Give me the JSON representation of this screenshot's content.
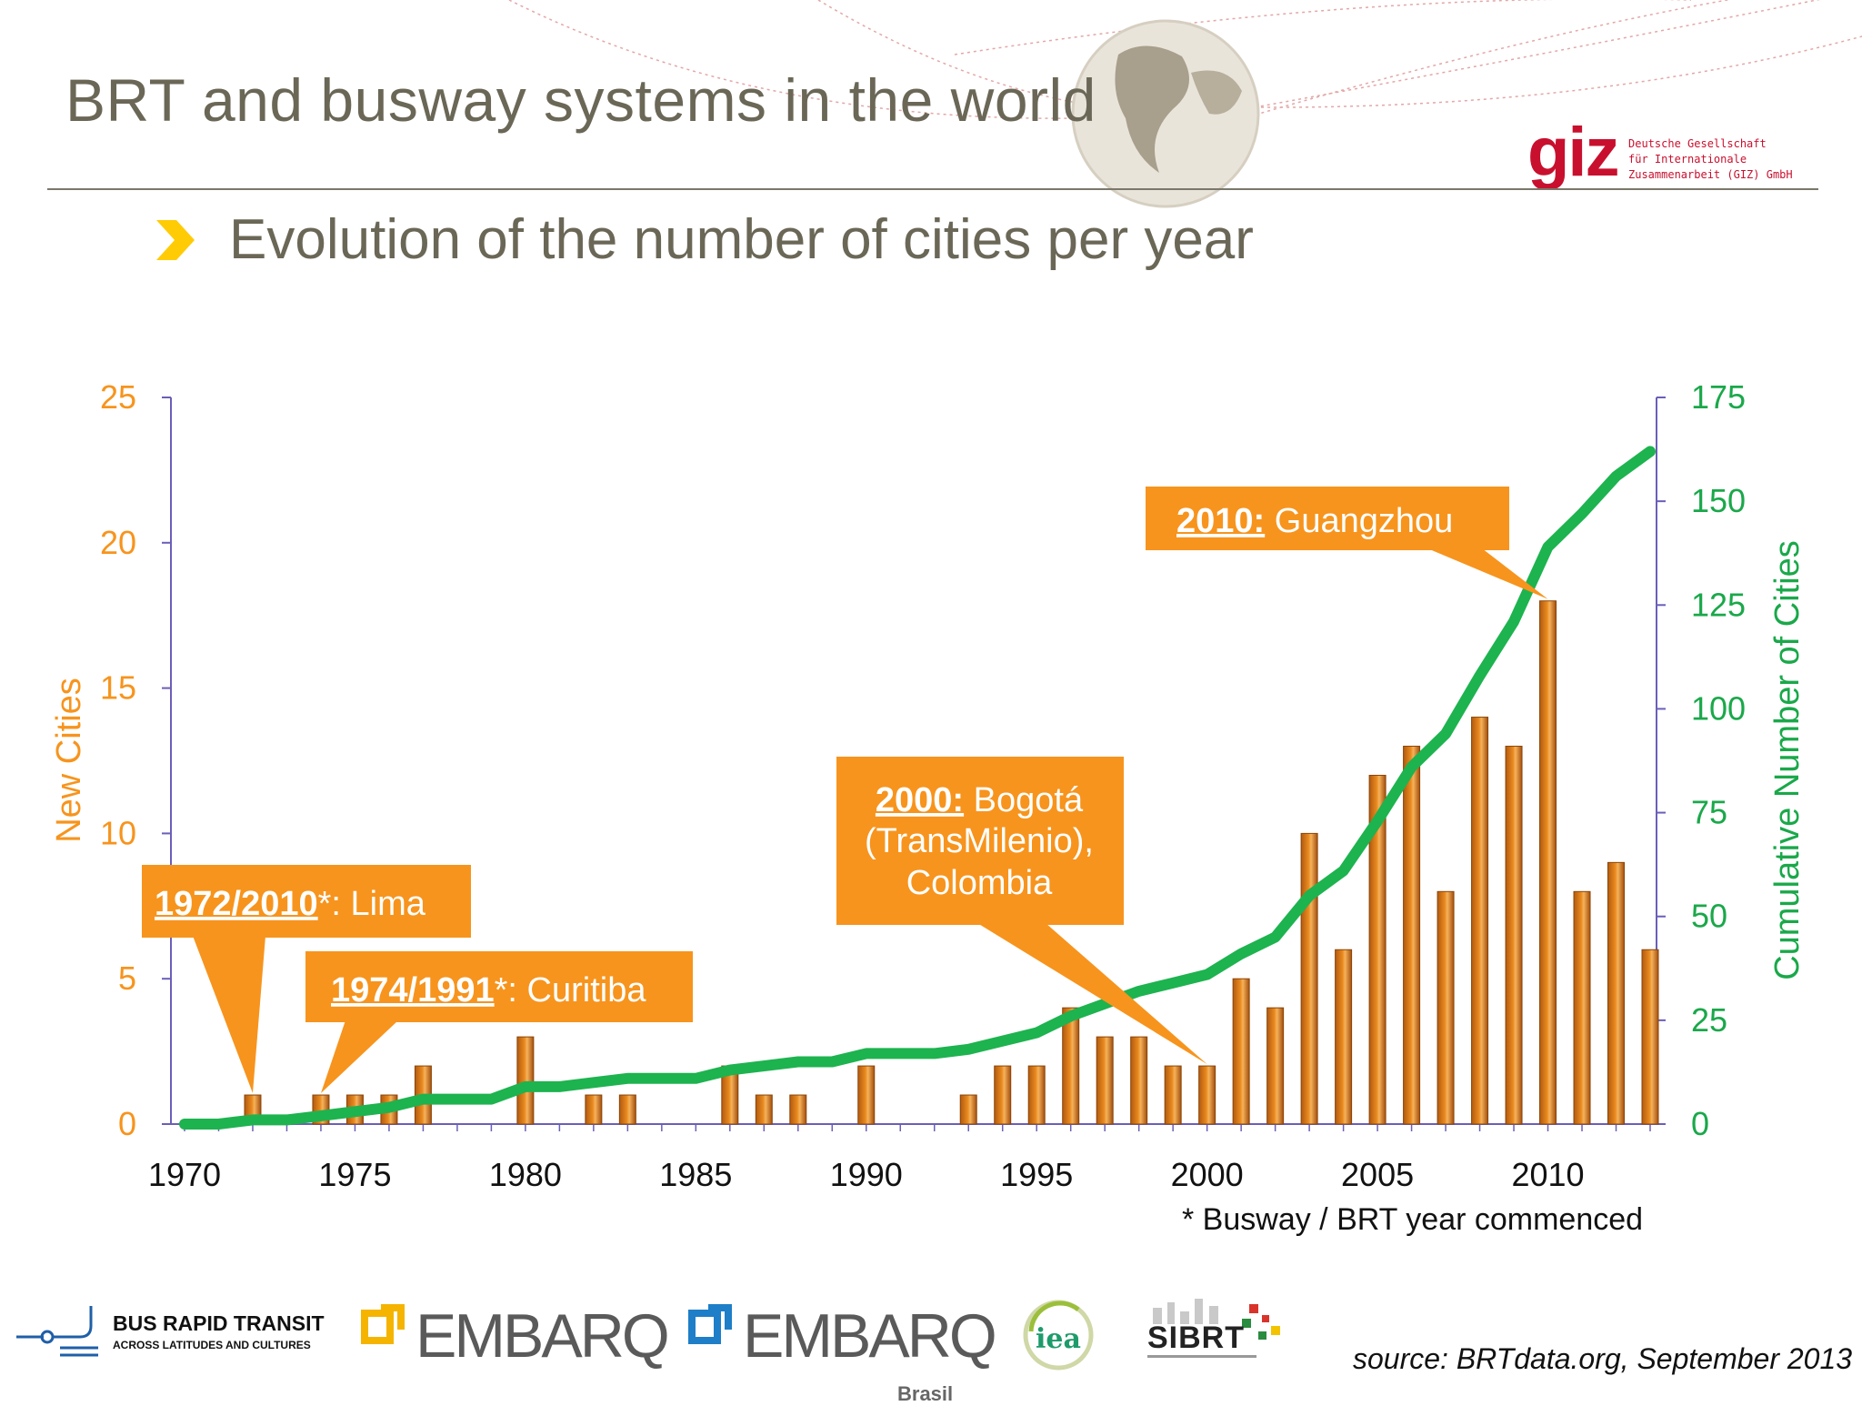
{
  "header": {
    "title": "BRT and busway systems in the world",
    "subtitle": "Evolution of the number of cities per year"
  },
  "giz": {
    "word": "giz",
    "text": "Deutsche Gesellschaft\nfür Internationale\nZusammenarbeit (GIZ) GmbH"
  },
  "colors": {
    "bar": "#e98a1f",
    "line": "#1db34f",
    "left_axis_text": "#f7941d",
    "right_axis_text": "#1aa84a",
    "axis_line": "#6a5fb8",
    "callout": "#f7941d"
  },
  "chart_data": {
    "type": "bar",
    "x": [
      1970,
      1971,
      1972,
      1973,
      1974,
      1975,
      1976,
      1977,
      1978,
      1979,
      1980,
      1981,
      1982,
      1983,
      1984,
      1985,
      1986,
      1987,
      1988,
      1989,
      1990,
      1991,
      1992,
      1993,
      1994,
      1995,
      1996,
      1997,
      1998,
      1999,
      2000,
      2001,
      2002,
      2003,
      2004,
      2005,
      2006,
      2007,
      2008,
      2009,
      2010,
      2011,
      2012,
      2013
    ],
    "series": [
      {
        "axis": "left",
        "kind": "bar",
        "values": [
          0,
          0,
          1,
          0,
          1,
          1,
          1,
          2,
          0,
          0,
          3,
          0,
          1,
          1,
          0,
          0,
          2,
          1,
          1,
          0,
          2,
          0,
          0,
          1,
          2,
          2,
          4,
          3,
          3,
          2,
          2,
          5,
          4,
          10,
          6,
          12,
          13,
          8,
          14,
          13,
          18,
          8,
          9,
          6
        ]
      },
      {
        "axis": "right",
        "kind": "line",
        "values": [
          0,
          0,
          1,
          1,
          2,
          3,
          4,
          6,
          6,
          6,
          9,
          9,
          10,
          11,
          11,
          11,
          13,
          14,
          15,
          15,
          17,
          17,
          17,
          18,
          20,
          22,
          26,
          29,
          32,
          34,
          36,
          41,
          45,
          55,
          61,
          73,
          86,
          94,
          108,
          121,
          139,
          147,
          156,
          162
        ]
      }
    ],
    "left_axis": {
      "label": "New Cities",
      "ylim": [
        0,
        25
      ],
      "ticks": [
        0,
        5,
        10,
        15,
        20,
        25
      ]
    },
    "right_axis": {
      "label": "Cumulative Number of Cities",
      "ylim": [
        0,
        175
      ],
      "ticks": [
        0,
        25,
        50,
        75,
        100,
        125,
        150,
        175
      ]
    },
    "x_ticks": [
      1970,
      1975,
      1980,
      1985,
      1990,
      1995,
      2000,
      2005,
      2010
    ],
    "annotations": [
      {
        "year_bold": "1972/2010",
        "rest": "*: Lima",
        "points_to": 1972
      },
      {
        "year_bold": "1974/1991",
        "rest": "*: Curitiba",
        "points_to": 1974
      },
      {
        "year_bold": "2000:",
        "rest": " Bogotá",
        "rest2": "(TransMilenio),",
        "rest3": "Colombia",
        "points_to": 2000
      },
      {
        "year_bold": "2010:",
        "rest": " Guangzhou",
        "points_to": 2010
      }
    ],
    "grid": false
  },
  "footnote": "* Busway / BRT year commenced",
  "source": "source: BRTdata.org, September 2013",
  "partners": {
    "brt_name": "BUS RAPID TRANSIT",
    "brt_tag": "ACROSS LATITUDES AND CULTURES",
    "embarq": "EMBARQ",
    "embarq_sub": "Brasil",
    "iea": "iea",
    "sibrt": "SIBRT"
  }
}
